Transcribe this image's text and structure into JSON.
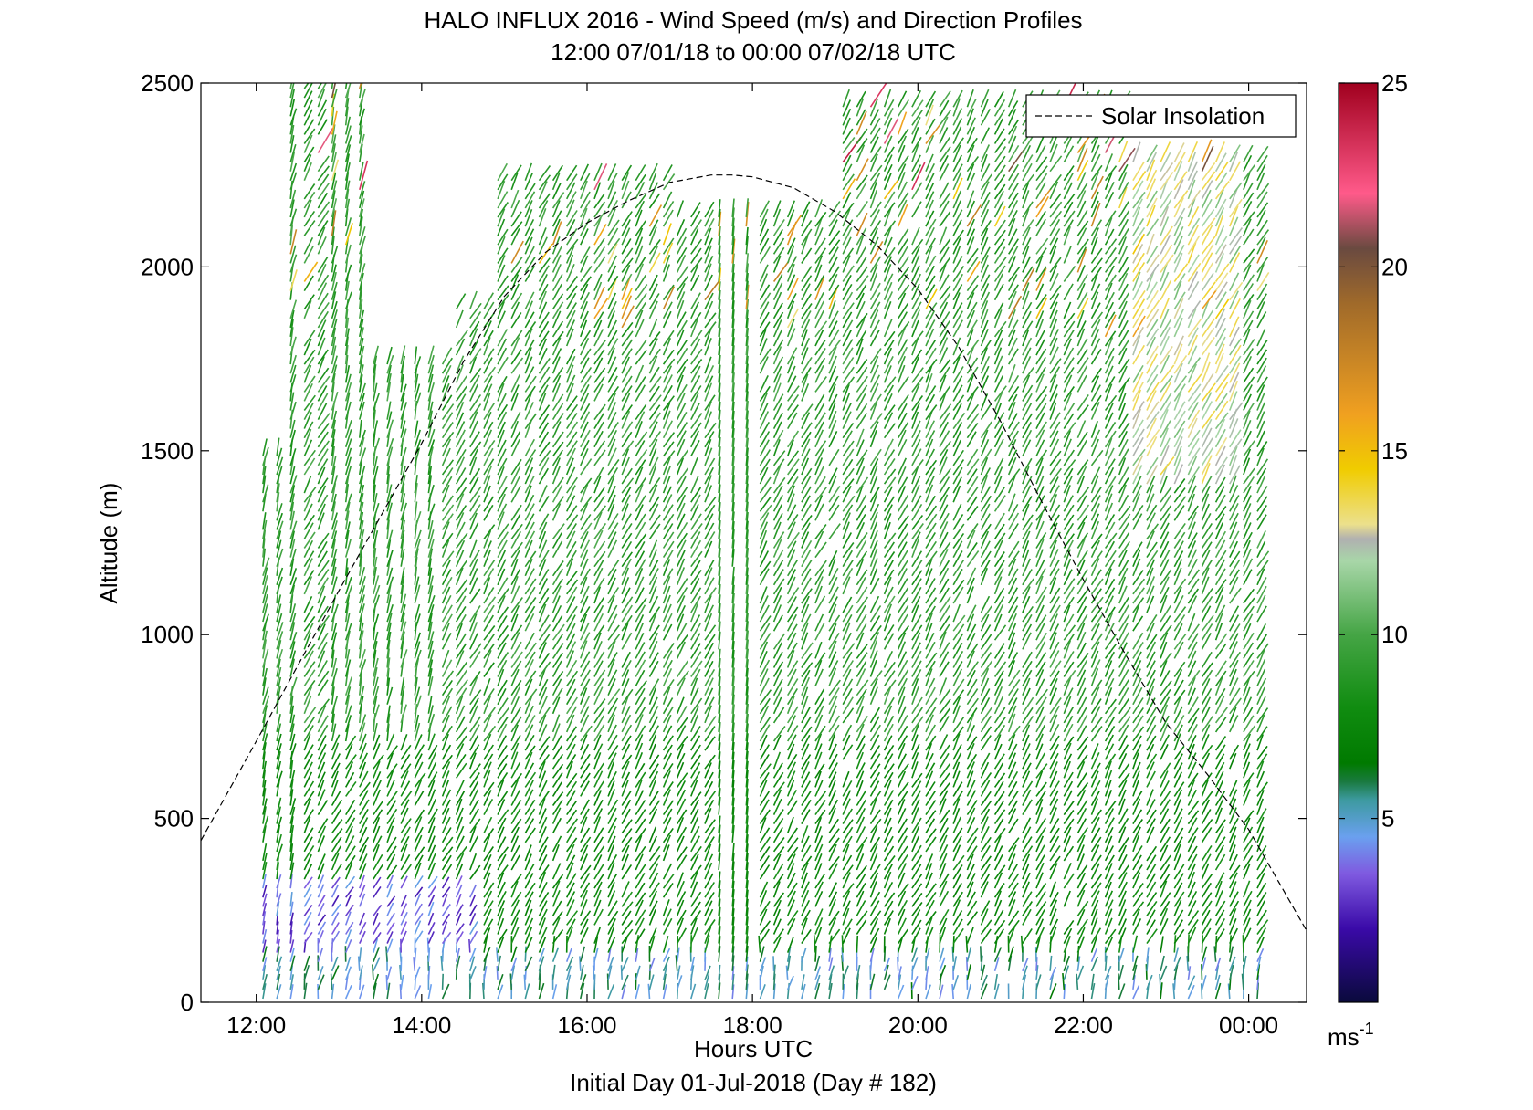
{
  "chart_data": {
    "type": "scatter",
    "title": "HALO INFLUX 2016 - Wind Speed (m/s) and Direction Profiles",
    "subtitle": "12:00 07/01/18 to 00:00 07/02/18  UTC",
    "footer": "Initial Day 01-Jul-2018 (Day # 182)",
    "xlabel": "Hours UTC",
    "ylabel": "Altitude (m)",
    "xlim": [
      11.33,
      24.7
    ],
    "ylim": [
      0,
      2500
    ],
    "x_ticks": [
      {
        "value": 12,
        "label": "12:00"
      },
      {
        "value": 14,
        "label": "14:00"
      },
      {
        "value": 16,
        "label": "16:00"
      },
      {
        "value": 18,
        "label": "18:00"
      },
      {
        "value": 20,
        "label": "20:00"
      },
      {
        "value": 22,
        "label": "22:00"
      },
      {
        "value": 24,
        "label": "00:00"
      }
    ],
    "y_ticks": [
      {
        "value": 0,
        "label": "0"
      },
      {
        "value": 500,
        "label": "500"
      },
      {
        "value": 1000,
        "label": "1000"
      },
      {
        "value": 1500,
        "label": "1500"
      },
      {
        "value": 2000,
        "label": "2000"
      },
      {
        "value": 2500,
        "label": "2500"
      }
    ],
    "legend": {
      "label": "Solar Insolation",
      "position": "top-right"
    },
    "solar_insolation": {
      "style": "dashed",
      "color": "#000000",
      "x": [
        11.33,
        12.0,
        12.5,
        13.0,
        13.5,
        14.0,
        14.5,
        15.0,
        15.5,
        16.0,
        16.5,
        17.0,
        17.5,
        17.75,
        18.0,
        18.5,
        19.0,
        19.5,
        20.0,
        20.5,
        21.0,
        21.5,
        22.0,
        22.5,
        23.0,
        23.5,
        24.0,
        24.7
      ],
      "y": [
        440,
        710,
        915,
        1120,
        1320,
        1520,
        1740,
        1920,
        2040,
        2120,
        2180,
        2230,
        2250,
        2250,
        2245,
        2215,
        2150,
        2060,
        1940,
        1780,
        1580,
        1360,
        1150,
        950,
        760,
        620,
        470,
        195
      ]
    },
    "colorbar": {
      "label": "ms",
      "label_superscript": "-1",
      "range": [
        0,
        25
      ],
      "ticks": [
        5,
        10,
        15,
        20,
        25
      ],
      "stops": [
        {
          "value": 0,
          "color": "#0a0a3c"
        },
        {
          "value": 2,
          "color": "#3a0aa8"
        },
        {
          "value": 3.5,
          "color": "#7f5ae0"
        },
        {
          "value": 4.5,
          "color": "#6aa0ef"
        },
        {
          "value": 5.5,
          "color": "#3d9aa0"
        },
        {
          "value": 6,
          "color": "#1a7a40"
        },
        {
          "value": 6.5,
          "color": "#007a00"
        },
        {
          "value": 8,
          "color": "#108c10"
        },
        {
          "value": 10,
          "color": "#45a545"
        },
        {
          "value": 12,
          "color": "#a8d6a8"
        },
        {
          "value": 12.6,
          "color": "#b0b0b0"
        },
        {
          "value": 13,
          "color": "#ece08c"
        },
        {
          "value": 14.5,
          "color": "#f0cc00"
        },
        {
          "value": 16,
          "color": "#f0a020"
        },
        {
          "value": 19,
          "color": "#a06a2a"
        },
        {
          "value": 20.5,
          "color": "#6a4a40"
        },
        {
          "value": 22,
          "color": "#ff5a8a"
        },
        {
          "value": 25,
          "color": "#a0001e"
        }
      ]
    },
    "profiles": {
      "start_hour": 12.08,
      "step_hours": 0.167,
      "count": 73,
      "altitude_step_m": 25,
      "altitude_max_m": 2500,
      "wind_from_direction_deg": 225,
      "typical_speed_ms": 9
    }
  }
}
